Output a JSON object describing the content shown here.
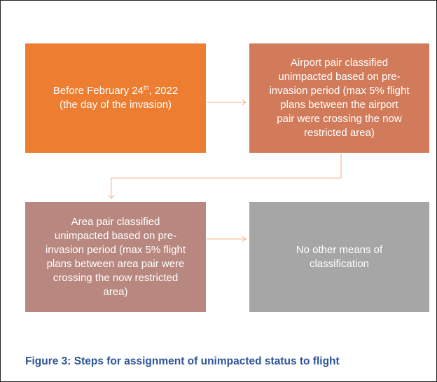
{
  "nodes": [
    {
      "line1": {
        "before": "Before February 24",
        "superscript": "th",
        "after": ", 2022"
      },
      "line2": "(the day of the invasion)"
    },
    {
      "lines": [
        "Airport pair  classified",
        "unimpacted based on pre-",
        "invasion period (max 5% flight",
        "plans between the airport",
        "pair were crossing the now",
        "restricted area)"
      ]
    },
    {
      "lines": [
        "Area pair classified",
        "unimpacted based on pre-",
        "invasion period (max 5% flight",
        "plans between area pair were",
        "crossing the now restricted",
        "area)"
      ]
    },
    {
      "lines": [
        "No other means of",
        "classification"
      ]
    }
  ],
  "caption": "Figure 3: Steps for assignment of unimpacted status to flight"
}
